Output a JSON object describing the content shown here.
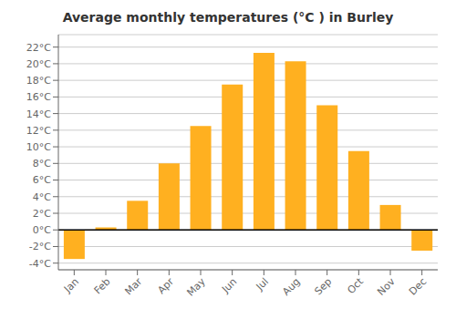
{
  "chart_data": {
    "type": "bar",
    "title": "Average monthly temperatures (°C ) in Burley",
    "categories": [
      "Jan",
      "Feb",
      "Mar",
      "Apr",
      "May",
      "Jun",
      "Jul",
      "Aug",
      "Sep",
      "Oct",
      "Nov",
      "Dec"
    ],
    "values": [
      -3.5,
      0.3,
      3.5,
      8.0,
      12.5,
      17.5,
      21.3,
      20.3,
      15.0,
      9.5,
      3.0,
      -2.5
    ],
    "color": "#FFB020",
    "ylim": [
      -4.8,
      23.5
    ],
    "yticks": [
      {
        "value": -4,
        "label": "-4°C"
      },
      {
        "value": -2,
        "label": "-2°C"
      },
      {
        "value": 0,
        "label": "0°C"
      },
      {
        "value": 2,
        "label": "2°C"
      },
      {
        "value": 4,
        "label": "4°C"
      },
      {
        "value": 6,
        "label": "6°C"
      },
      {
        "value": 8,
        "label": "8°C"
      },
      {
        "value": 10,
        "label": "10°C"
      },
      {
        "value": 12,
        "label": "12°C"
      },
      {
        "value": 14,
        "label": "14°C"
      },
      {
        "value": 16,
        "label": "16°C"
      },
      {
        "value": 18,
        "label": "18°C"
      },
      {
        "value": 20,
        "label": "20°C"
      },
      {
        "value": 22,
        "label": "22°C"
      }
    ],
    "grid": true
  }
}
